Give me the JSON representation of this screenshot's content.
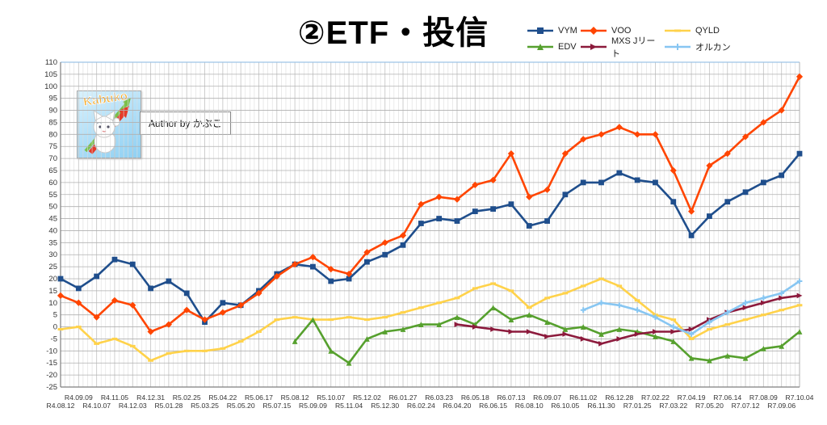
{
  "title": "②ETF・投信",
  "author_badge": {
    "image_label": "Kabuko",
    "caption": "Author by かぶこ"
  },
  "colors": {
    "axis": "#7f7f7f",
    "grid_h": "#b0b0b0",
    "grid_v_minor": "#dcdcdc",
    "grid_v_major": "#c8c8c8",
    "plot_top_border": "#9dc3e6",
    "title_text": "#000000"
  },
  "chart_data": {
    "type": "line",
    "title": "②ETF・投信",
    "xlabel": "",
    "ylabel": "",
    "ylim": [
      -25,
      110
    ],
    "y_axis": {
      "min": -25,
      "max": 110,
      "step": 5
    },
    "grid": true,
    "legend_position": "top-right",
    "x_labels": [
      "R4.08.12",
      "R4.09.09",
      "R4.10.07",
      "R4.11.05",
      "R4.12.03",
      "R4.12.31",
      "R5.01.28",
      "R5.02.25",
      "R5.03.25",
      "R5.04.22",
      "R5.05.20",
      "R5.06.17",
      "R5.07.15",
      "R5.08.12",
      "R5.09.09",
      "R5.10.07",
      "R5.11.04",
      "R5.12.02",
      "R5.12.30",
      "R6.01.27",
      "R6.02.24",
      "R6.03.23",
      "R6.04.20",
      "R6.05.18",
      "R6.06.15",
      "R6.07.13",
      "R6.08.10",
      "R6.09.07",
      "R6.10.05",
      "R6.11.02",
      "R6.11.30",
      "R6.12.28",
      "R7.01.25",
      "R7.02.22",
      "R7.03.22",
      "R7.04.19",
      "R7.05.20",
      "R7.06.14",
      "R7.07.12",
      "R7.08.09",
      "R7.09.06",
      "R7.10.04"
    ],
    "series": [
      {
        "name": "VYM",
        "color": "#1f4e8c",
        "marker": "square",
        "values": [
          20,
          16,
          21,
          28,
          26,
          16,
          19,
          14,
          2,
          10,
          9,
          15,
          22,
          26,
          25,
          19,
          20,
          27,
          30,
          34,
          43,
          45,
          44,
          48,
          49,
          51,
          42,
          44,
          55,
          60,
          60,
          64,
          61,
          60,
          52,
          38,
          46,
          52,
          56,
          60,
          63,
          72
        ]
      },
      {
        "name": "VOO",
        "color": "#ff4500",
        "marker": "diamond",
        "values": [
          13,
          10,
          4,
          11,
          9,
          -2,
          1,
          7,
          3,
          6,
          9,
          14,
          21,
          26,
          29,
          24,
          22,
          31,
          35,
          38,
          51,
          54,
          53,
          59,
          61,
          72,
          54,
          57,
          72,
          78,
          80,
          83,
          80,
          80,
          65,
          48,
          67,
          72,
          79,
          85,
          90,
          104
        ]
      },
      {
        "name": "QYLD",
        "color": "#ffd24a",
        "marker": "dash",
        "values": [
          -1,
          0,
          -7,
          -5,
          -8,
          -14,
          -11,
          -10,
          -10,
          -9,
          -6,
          -2,
          3,
          4,
          3,
          3,
          4,
          3,
          4,
          6,
          8,
          10,
          12,
          16,
          18,
          15,
          8,
          12,
          14,
          17,
          20,
          17,
          11,
          5,
          3,
          -5,
          -1,
          1,
          3,
          5,
          7,
          9
        ]
      },
      {
        "name": "EDV",
        "color": "#56a02e",
        "marker": "triangle",
        "values": [
          null,
          null,
          null,
          null,
          null,
          null,
          null,
          null,
          null,
          null,
          null,
          null,
          null,
          -6,
          3,
          -10,
          -15,
          -5,
          -2,
          -1,
          1,
          1,
          4,
          1,
          8,
          3,
          5,
          2,
          -1,
          0,
          -3,
          -1,
          -2,
          -4,
          -6,
          -13,
          -14,
          -12,
          -13,
          -9,
          -8,
          -2
        ]
      },
      {
        "name": "MXS Jリート",
        "color": "#8c1a3c",
        "marker": "arrow",
        "values": [
          null,
          null,
          null,
          null,
          null,
          null,
          null,
          null,
          null,
          null,
          null,
          null,
          null,
          null,
          null,
          null,
          null,
          null,
          null,
          null,
          null,
          null,
          1,
          0,
          -1,
          -2,
          -2,
          -4,
          -3,
          -5,
          -7,
          -5,
          -3,
          -2,
          -2,
          -1,
          3,
          6,
          8,
          10,
          12,
          13
        ]
      },
      {
        "name": "オルカン",
        "color": "#87c6f2",
        "marker": "plus",
        "values": [
          null,
          null,
          null,
          null,
          null,
          null,
          null,
          null,
          null,
          null,
          null,
          null,
          null,
          null,
          null,
          null,
          null,
          null,
          null,
          null,
          null,
          null,
          null,
          null,
          null,
          null,
          null,
          null,
          null,
          7,
          10,
          9,
          7,
          4,
          0,
          -3,
          2,
          6,
          10,
          12,
          14,
          19
        ]
      }
    ]
  }
}
